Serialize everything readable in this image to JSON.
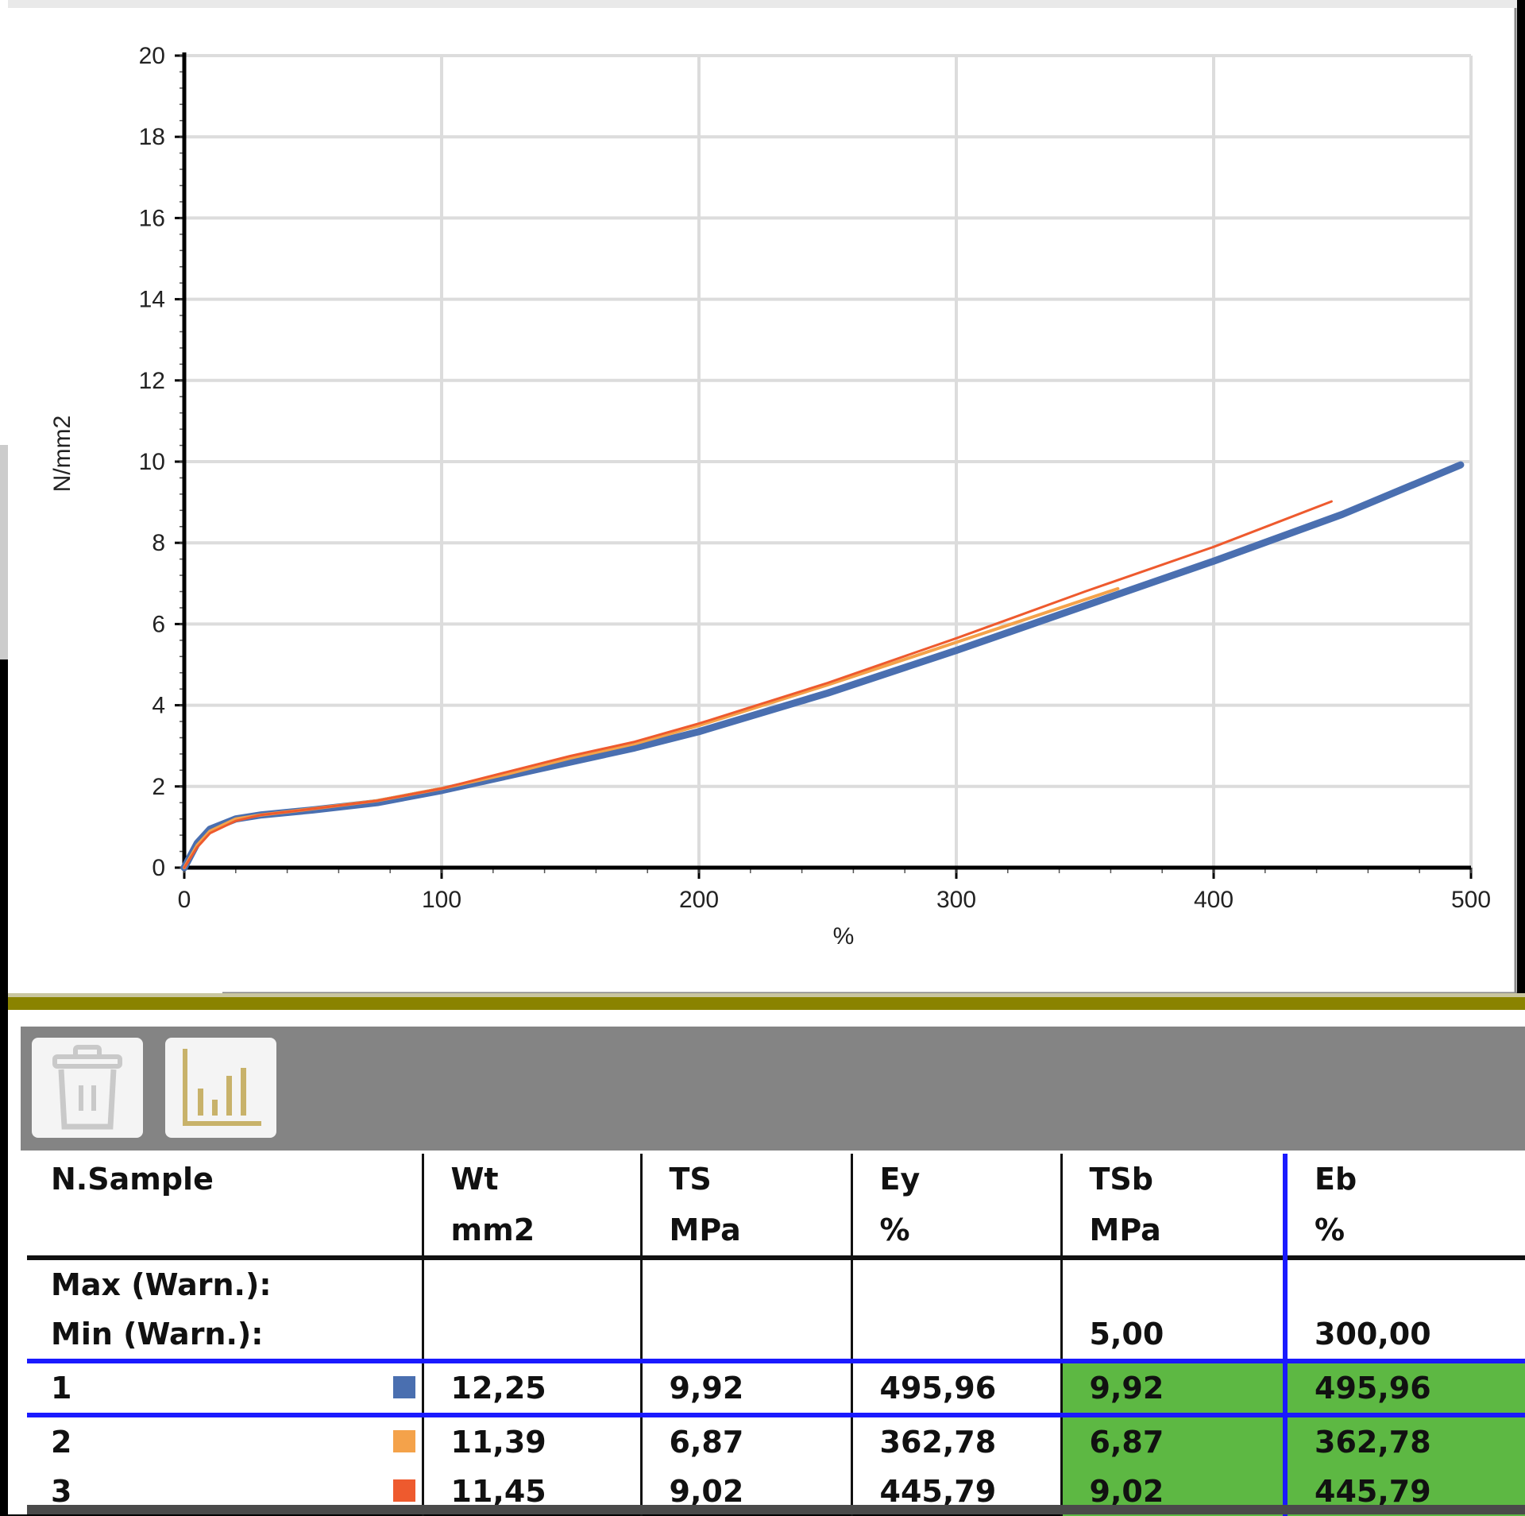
{
  "chart_data": {
    "type": "line",
    "title": "",
    "xlabel": "%",
    "ylabel": "N/mm2",
    "xlim": [
      0,
      500
    ],
    "ylim": [
      0,
      20
    ],
    "x_ticks": [
      0,
      100,
      200,
      300,
      400,
      500
    ],
    "y_ticks": [
      0,
      2,
      4,
      6,
      8,
      10,
      12,
      14,
      16,
      18,
      20
    ],
    "grid": true,
    "series": [
      {
        "name": "1",
        "color": "#4a6fb0",
        "points": [
          [
            0,
            0
          ],
          [
            5,
            0.6
          ],
          [
            10,
            0.95
          ],
          [
            20,
            1.2
          ],
          [
            30,
            1.3
          ],
          [
            50,
            1.42
          ],
          [
            75,
            1.6
          ],
          [
            100,
            1.9
          ],
          [
            125,
            2.25
          ],
          [
            150,
            2.6
          ],
          [
            175,
            2.95
          ],
          [
            200,
            3.35
          ],
          [
            250,
            4.3
          ],
          [
            300,
            5.35
          ],
          [
            350,
            6.45
          ],
          [
            400,
            7.55
          ],
          [
            450,
            8.7
          ],
          [
            495.96,
            9.92
          ]
        ]
      },
      {
        "name": "2",
        "color": "#f4a24a",
        "points": [
          [
            0,
            0
          ],
          [
            5,
            0.55
          ],
          [
            10,
            0.9
          ],
          [
            20,
            1.2
          ],
          [
            30,
            1.3
          ],
          [
            50,
            1.45
          ],
          [
            75,
            1.65
          ],
          [
            100,
            1.95
          ],
          [
            125,
            2.3
          ],
          [
            150,
            2.7
          ],
          [
            175,
            3.05
          ],
          [
            200,
            3.5
          ],
          [
            250,
            4.5
          ],
          [
            300,
            5.55
          ],
          [
            362.78,
            6.87
          ]
        ]
      },
      {
        "name": "3",
        "color": "#ee5a2e",
        "points": [
          [
            0,
            0
          ],
          [
            5,
            0.5
          ],
          [
            10,
            0.85
          ],
          [
            20,
            1.15
          ],
          [
            30,
            1.3
          ],
          [
            50,
            1.45
          ],
          [
            75,
            1.65
          ],
          [
            100,
            1.95
          ],
          [
            125,
            2.35
          ],
          [
            150,
            2.75
          ],
          [
            175,
            3.1
          ],
          [
            200,
            3.55
          ],
          [
            250,
            4.55
          ],
          [
            300,
            5.65
          ],
          [
            350,
            6.8
          ],
          [
            400,
            7.9
          ],
          [
            445.79,
            9.02
          ]
        ]
      }
    ]
  },
  "toolbar": {
    "delete_icon": "trash-icon",
    "chart_icon": "bar-chart-icon",
    "chart_icon_color": "#c8b26a"
  },
  "table": {
    "headers": [
      {
        "name": "N.Sample",
        "unit": ""
      },
      {
        "name": "Wt",
        "unit": "mm2"
      },
      {
        "name": "TS",
        "unit": "MPa"
      },
      {
        "name": "Ey",
        "unit": "%"
      },
      {
        "name": "TSb",
        "unit": "MPa"
      },
      {
        "name": "Eb",
        "unit": "%"
      }
    ],
    "limits": {
      "max_label": "Max (Warn.):",
      "min_label": "Min (Warn.):",
      "max": [
        "",
        "",
        "",
        "",
        ""
      ],
      "min": [
        "",
        "",
        "",
        "5,00",
        "300,00"
      ]
    },
    "rows": [
      {
        "id": "1",
        "color": "#4a6fb0",
        "values": [
          "12,25",
          "9,92",
          "495,96",
          "9,92",
          "495,96"
        ]
      },
      {
        "id": "2",
        "color": "#f4a24a",
        "values": [
          "11,39",
          "6,87",
          "362,78",
          "6,87",
          "362,78"
        ]
      },
      {
        "id": "3",
        "color": "#ee5a2e",
        "values": [
          "11,45",
          "9,02",
          "445,79",
          "9,02",
          "445,79"
        ]
      }
    ],
    "pass_color": "#5db843"
  }
}
